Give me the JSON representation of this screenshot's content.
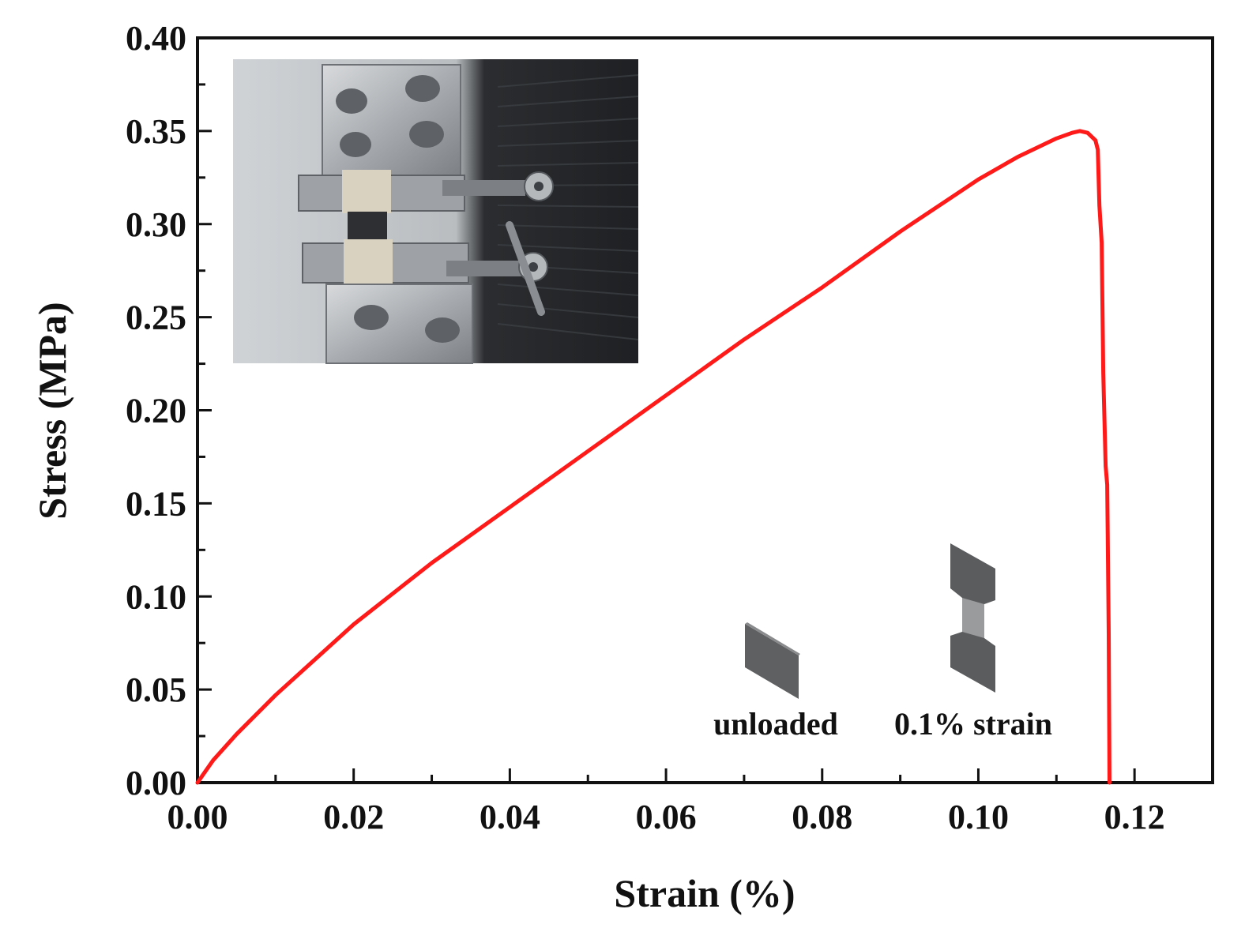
{
  "chart_data": {
    "type": "line",
    "title": "",
    "xlabel": "Strain (%)",
    "ylabel": "Stress (MPa)",
    "xlim": [
      0,
      0.13
    ],
    "ylim": [
      0,
      0.4
    ],
    "xticks": [
      "0.00",
      "0.02",
      "0.04",
      "0.06",
      "0.08",
      "0.10",
      "0.12"
    ],
    "yticks": [
      "0.00",
      "0.05",
      "0.10",
      "0.15",
      "0.20",
      "0.25",
      "0.30",
      "0.35",
      "0.40"
    ],
    "grid": false,
    "series": [
      {
        "color": "#ff1a1a",
        "x": [
          0.0,
          0.002,
          0.005,
          0.01,
          0.015,
          0.02,
          0.03,
          0.04,
          0.05,
          0.06,
          0.07,
          0.08,
          0.09,
          0.1,
          0.105,
          0.11,
          0.112,
          0.113,
          0.114,
          0.115,
          0.1153,
          0.1155,
          0.1158,
          0.116,
          0.1163,
          0.1165,
          0.1167,
          0.1168
        ],
        "y": [
          0.0,
          0.012,
          0.026,
          0.047,
          0.066,
          0.085,
          0.118,
          0.148,
          0.178,
          0.208,
          0.238,
          0.266,
          0.296,
          0.324,
          0.336,
          0.346,
          0.349,
          0.35,
          0.349,
          0.345,
          0.34,
          0.31,
          0.29,
          0.22,
          0.17,
          0.16,
          0.08,
          0.0
        ]
      }
    ],
    "annotations": [
      {
        "text": "unloaded"
      },
      {
        "text": "0.1% strain"
      }
    ],
    "inset": {
      "description_icon": "tensile-test-grips-photo"
    }
  }
}
